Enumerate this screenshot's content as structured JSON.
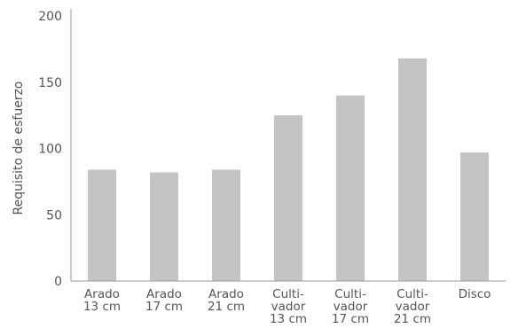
{
  "chart_data": {
    "type": "bar",
    "title": "",
    "xlabel": "",
    "ylabel": "Requisito de esfuerzo",
    "ylim": [
      0,
      200
    ],
    "yticks": [
      0,
      50,
      100,
      150,
      200
    ],
    "grid": false,
    "legend": "none",
    "bar_color": "#c4c4c4",
    "axis_color": "#9a9a9a",
    "categories": [
      [
        "Arado",
        "13 cm"
      ],
      [
        "Arado",
        "17 cm"
      ],
      [
        "Arado",
        "21 cm"
      ],
      [
        "Culti-",
        "vador",
        "13 cm"
      ],
      [
        "Culti-",
        "vador",
        "17 cm"
      ],
      [
        "Culti-",
        "vador",
        "21 cm"
      ],
      [
        "Disco"
      ]
    ],
    "values": [
      84,
      82,
      84,
      125,
      140,
      168,
      97
    ]
  }
}
